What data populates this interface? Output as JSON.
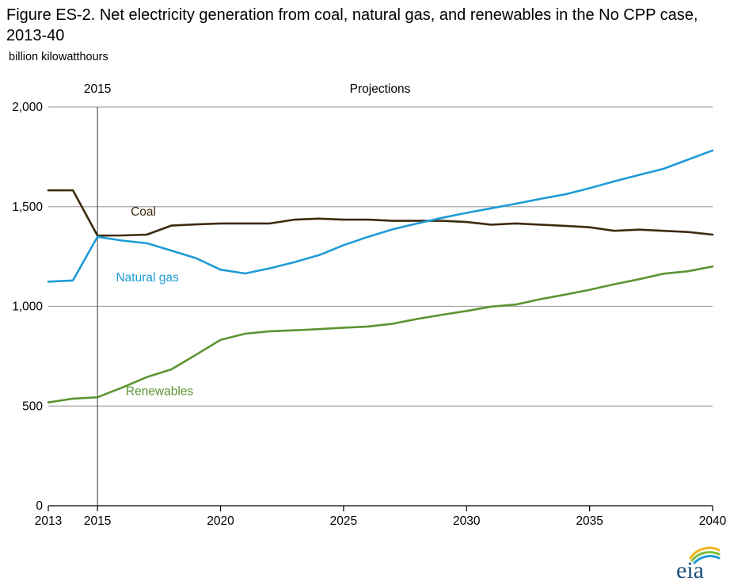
{
  "title": "Figure ES-2. Net electricity generation from coal, natural gas, and renewables in the No CPP case, 2013-40",
  "unit_label": "billion kilowatthours",
  "history_marker_label": "2015",
  "projections_label": "Projections",
  "logo_text": "eia",
  "chart_data": {
    "type": "line",
    "title": "Figure ES-2. Net electricity generation from coal, natural gas, and renewables in the No CPP case, 2013-40",
    "ylabel": "billion kilowatthours",
    "xlim": [
      2013,
      2040
    ],
    "ylim": [
      0,
      2000
    ],
    "xticks": [
      2013,
      2015,
      2020,
      2025,
      2030,
      2035,
      2040
    ],
    "yticks": [
      0,
      500,
      1000,
      1500,
      2000
    ],
    "ytick_labels": [
      "0",
      "500",
      "1,000",
      "1,500",
      "2,000"
    ],
    "grid": "horizontal",
    "divider_year": 2015,
    "x": [
      2013,
      2014,
      2015,
      2016,
      2017,
      2018,
      2019,
      2020,
      2021,
      2022,
      2023,
      2024,
      2025,
      2026,
      2027,
      2028,
      2029,
      2030,
      2031,
      2032,
      2033,
      2034,
      2035,
      2036,
      2037,
      2038,
      2039,
      2040
    ],
    "series": [
      {
        "name": "Coal",
        "color": "#3d2b10",
        "values": [
          1582,
          1582,
          1355,
          1356,
          1360,
          1405,
          1411,
          1416,
          1416,
          1416,
          1435,
          1440,
          1435,
          1435,
          1429,
          1429,
          1429,
          1423,
          1410,
          1416,
          1410,
          1404,
          1397,
          1379,
          1385,
          1379,
          1373,
          1360
        ]
      },
      {
        "name": "Natural gas",
        "color": "#1f9bd7",
        "values": [
          1124,
          1130,
          1349,
          1330,
          1317,
          1280,
          1242,
          1184,
          1165,
          1191,
          1222,
          1257,
          1307,
          1349,
          1387,
          1416,
          1444,
          1469,
          1492,
          1515,
          1539,
          1562,
          1593,
          1627,
          1659,
          1690,
          1736,
          1782
        ]
      },
      {
        "name": "Renewables",
        "color": "#5b9432",
        "values": [
          518,
          537,
          544,
          593,
          645,
          684,
          757,
          832,
          863,
          875,
          880,
          886,
          893,
          899,
          913,
          937,
          958,
          977,
          999,
          1009,
          1036,
          1059,
          1083,
          1111,
          1136,
          1164,
          1176,
          1200
        ]
      }
    ]
  }
}
